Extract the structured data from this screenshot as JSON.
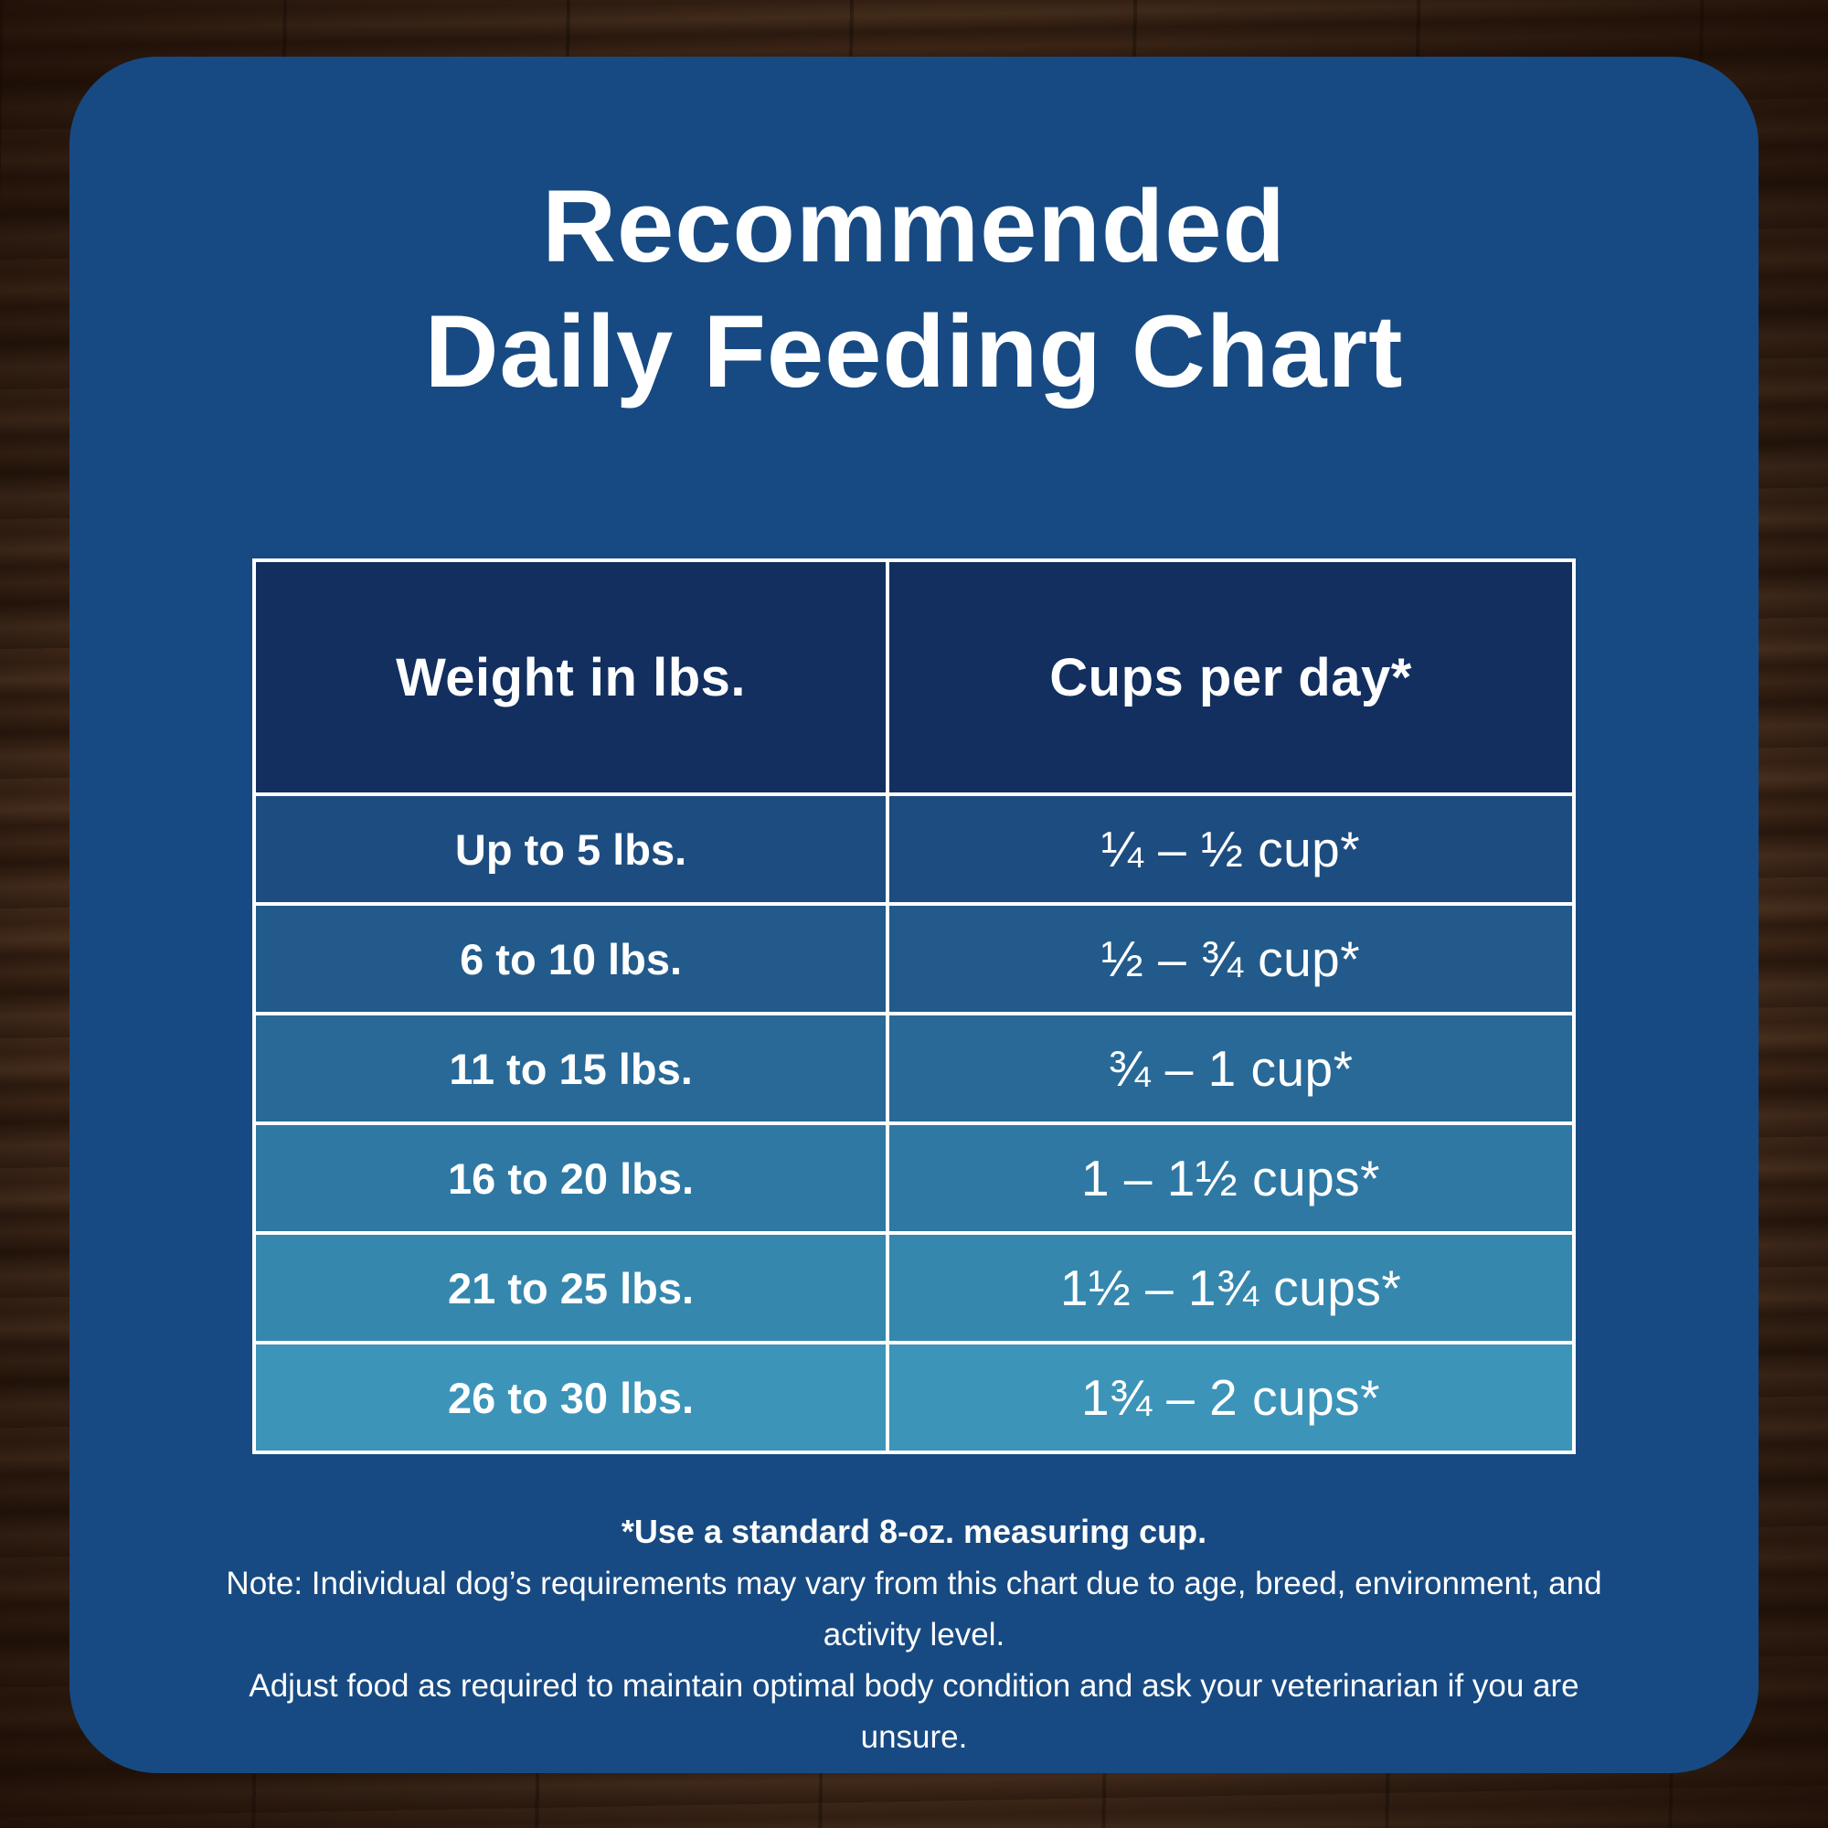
{
  "title": {
    "line1": "Recommended",
    "line2": "Daily Feeding Chart"
  },
  "chart_data": {
    "type": "table",
    "title": "Recommended Daily Feeding Chart",
    "columns": [
      "Weight in lbs.",
      "Cups per day*"
    ],
    "rows": [
      [
        "Up to 5 lbs.",
        "¼ – ½ cup*"
      ],
      [
        "6 to 10 lbs.",
        "½ – ¾ cup*"
      ],
      [
        "11 to 15 lbs.",
        "¾ – 1 cup*"
      ],
      [
        "16 to 20 lbs.",
        "1 – 1½ cups*"
      ],
      [
        "21 to 25 lbs.",
        "1½ – 1¾ cups*"
      ],
      [
        "26 to 30 lbs.",
        "1¾ – 2 cups*"
      ]
    ],
    "header_color": "#122f5f",
    "row_colors": [
      "#1d4d80",
      "#225a8b",
      "#286997",
      "#2e78a3",
      "#3587ae",
      "#3c94b9"
    ],
    "panel_color": "#174a82",
    "text_color": "#ffffff"
  },
  "footnotes": {
    "measuring_cup": "*Use a standard 8-oz. measuring cup.",
    "note_line1": "Note: Individual dog’s requirements may vary from this chart due to age, breed, environment, and activity level.",
    "note_line2": "Adjust food as required to maintain optimal body condition and ask your veterinarian if you are unsure."
  }
}
